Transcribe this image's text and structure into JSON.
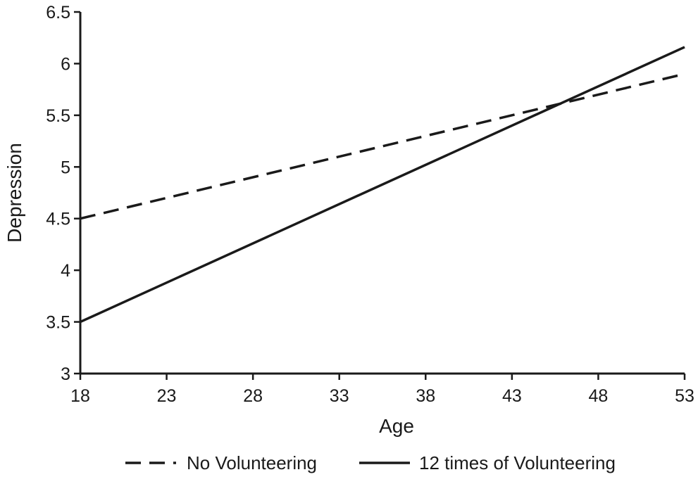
{
  "chart_data": {
    "type": "line",
    "title": "",
    "xlabel": "Age",
    "ylabel": "Depression",
    "xlim": [
      18,
      53
    ],
    "ylim": [
      3,
      6.5
    ],
    "xticks": [
      18,
      23,
      28,
      33,
      38,
      43,
      48,
      53
    ],
    "yticks": [
      3,
      3.5,
      4,
      4.5,
      5,
      5.5,
      6,
      6.5
    ],
    "ytick_labels": [
      "3",
      "3.5",
      "4",
      "4.5",
      "5",
      "5.5",
      "6",
      "6.5"
    ],
    "grid": false,
    "legend_position": "bottom",
    "series": [
      {
        "name": "No Volunteering",
        "style": "dashed",
        "color": "#1a1a1a",
        "x": [
          18,
          53
        ],
        "y": [
          4.5,
          5.9
        ]
      },
      {
        "name": "12 times of Volunteering",
        "style": "solid",
        "color": "#1a1a1a",
        "x": [
          18,
          53
        ],
        "y": [
          3.5,
          6.16
        ]
      }
    ]
  }
}
